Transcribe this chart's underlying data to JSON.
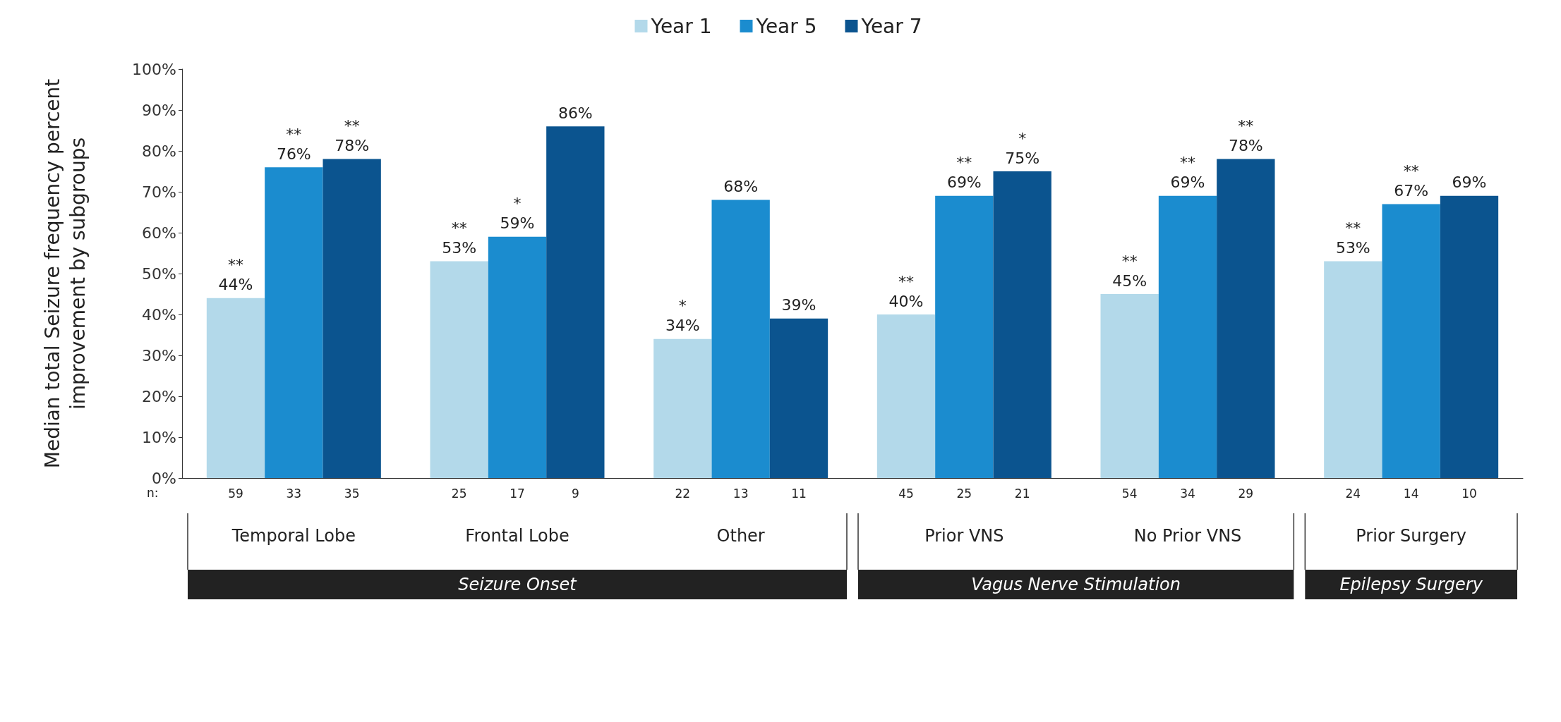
{
  "chart_data": {
    "type": "bar",
    "ylabel": "Median total Seizure frequency percent\nimprovement by subgroups",
    "categories": [
      "Temporal Lobe",
      "Frontal Lobe",
      "Other",
      "Prior VNS",
      "No Prior VNS",
      "Prior Surgery"
    ],
    "series": [
      {
        "name": "Year 1",
        "color": "#b3d9ea",
        "values": [
          44,
          53,
          34,
          40,
          45,
          53
        ],
        "value_labels": [
          "**\n44%",
          "**\n53%",
          "*\n34%",
          "**\n40%",
          "**\n45%",
          "**\n53%"
        ]
      },
      {
        "name": "Year 5",
        "color": "#1b8ccf",
        "values": [
          76,
          59,
          68,
          69,
          69,
          67
        ],
        "value_labels": [
          "**\n76%",
          "*\n59%",
          "68%",
          "**\n69%",
          "**\n69%",
          "**\n67%"
        ]
      },
      {
        "name": "Year 7",
        "color": "#0b548f",
        "values": [
          78,
          86,
          39,
          75,
          78,
          69
        ],
        "value_labels": [
          "**\n78%",
          "86%",
          "39%",
          "*\n75%",
          "**\n78%",
          "69%"
        ]
      }
    ],
    "ylim": [
      0,
      100
    ],
    "yticks": [
      {
        "value": 0,
        "label": "0%"
      },
      {
        "value": 10,
        "label": "10%"
      },
      {
        "value": 20,
        "label": "20%"
      },
      {
        "value": 30,
        "label": "30%"
      },
      {
        "value": 40,
        "label": "40%"
      },
      {
        "value": 50,
        "label": "50%"
      },
      {
        "value": 60,
        "label": "60%"
      },
      {
        "value": 70,
        "label": "70%"
      },
      {
        "value": 80,
        "label": "80%"
      },
      {
        "value": 90,
        "label": "90%"
      },
      {
        "value": 100,
        "label": "100%"
      }
    ],
    "grid": false,
    "legend": "top",
    "annotations": [
      "n:",
      "59",
      "33",
      "35",
      "25",
      "17",
      "9",
      "22",
      "13",
      "11",
      "45",
      "25",
      "21",
      "54",
      "34",
      "29",
      "24",
      "14",
      "10",
      "Seizure Onset",
      "Vagus Nerve Stimulation",
      "Epilepsy Surgery"
    ]
  }
}
